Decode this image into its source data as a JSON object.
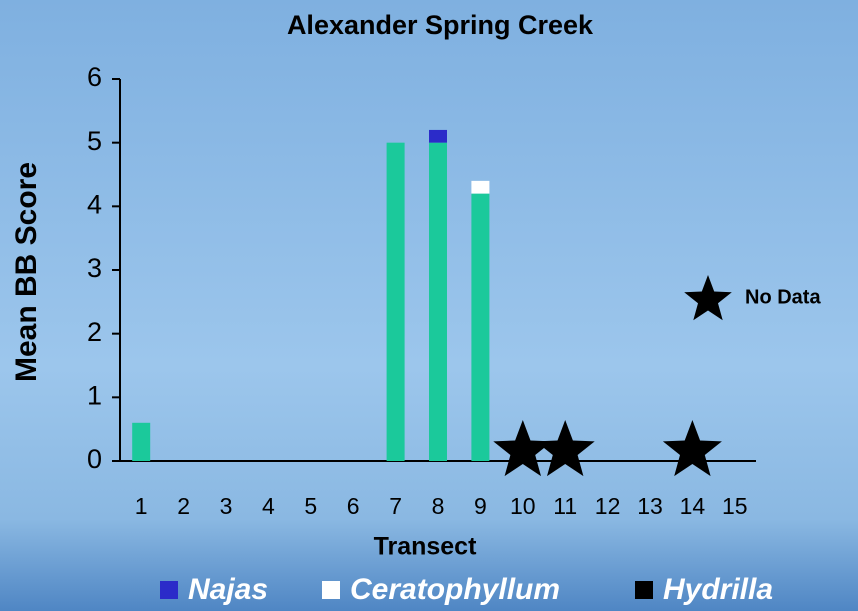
{
  "chart_data": {
    "type": "stacked_bar",
    "title": "Alexander Spring Creek",
    "x_label": "Transect",
    "y_label": "Mean BB Score",
    "categories": [
      "1",
      "2",
      "3",
      "4",
      "5",
      "6",
      "7",
      "8",
      "9",
      "10",
      "11",
      "12",
      "13",
      "14",
      "15"
    ],
    "series": [
      {
        "color": "#1bc99b",
        "values": [
          0.6,
          0,
          0,
          0,
          0,
          0,
          5,
          5,
          4.2,
          null,
          null,
          0,
          0,
          null,
          0
        ]
      },
      {
        "name": "Najas",
        "color": "#2b2bc9",
        "values": [
          0,
          0,
          0,
          0,
          0,
          0,
          0,
          0.2,
          0,
          null,
          null,
          0,
          0,
          null,
          0
        ]
      },
      {
        "name": "Ceratophyllum",
        "color": "#ffffff",
        "values": [
          0,
          0,
          0,
          0,
          0,
          0,
          0,
          0,
          0.2,
          null,
          null,
          0,
          0,
          null,
          0
        ]
      },
      {
        "name": "Hydrilla",
        "color": "#000000",
        "values": [
          0,
          0,
          0,
          0,
          0,
          0,
          0,
          0,
          0,
          null,
          null,
          0,
          0,
          null,
          0
        ]
      }
    ],
    "annotation": "No Data",
    "ylim": [
      0,
      6
    ],
    "yticks": [
      0,
      1,
      2,
      3,
      4,
      5,
      6
    ]
  }
}
